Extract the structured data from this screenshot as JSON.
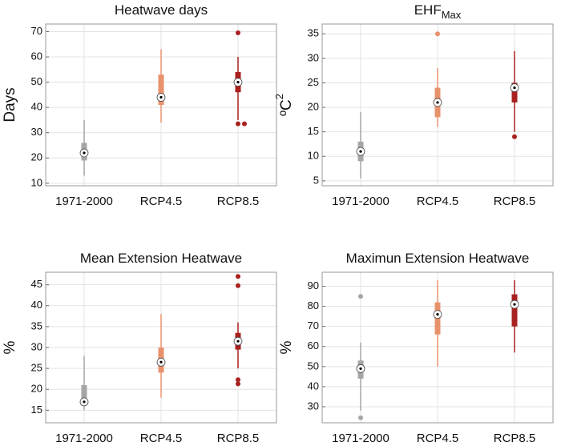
{
  "chart_data": [
    {
      "type": "box",
      "title": "Heatwave days",
      "ylabel": "Days",
      "categories": [
        "1971-2000",
        "RCP4.5",
        "RCP8.5"
      ],
      "colors": [
        "#a6a6a6",
        "#e8926c",
        "#a8201f"
      ],
      "boxes": [
        {
          "whisker_low": 13,
          "q1": 19,
          "median": 22,
          "q3": 26,
          "whisker_high": 35,
          "outliers": []
        },
        {
          "whisker_low": 34,
          "q1": 41,
          "median": 44,
          "q3": 53,
          "whisker_high": 63,
          "outliers": []
        },
        {
          "whisker_low": 35,
          "q1": 46,
          "median": 50,
          "q3": 54,
          "whisker_high": 60,
          "outliers": [
            33.5,
            33.5,
            69.5
          ]
        }
      ],
      "ylim": [
        9,
        73
      ],
      "yticks": [
        10,
        20,
        30,
        40,
        50,
        60,
        70
      ],
      "grid": true
    },
    {
      "type": "box",
      "title": "EHF",
      "title_subscript": "Max",
      "ylabel": "ºC",
      "ylabel_superscript": "2",
      "categories": [
        "1971-2000",
        "RCP4.5",
        "RCP8.5"
      ],
      "colors": [
        "#a6a6a6",
        "#e8926c",
        "#a8201f"
      ],
      "boxes": [
        {
          "whisker_low": 5.5,
          "q1": 9,
          "median": 11,
          "q3": 13,
          "whisker_high": 19,
          "outliers": []
        },
        {
          "whisker_low": 16,
          "q1": 18,
          "median": 21,
          "q3": 24,
          "whisker_high": 28,
          "outliers": [
            35
          ]
        },
        {
          "whisker_low": 15,
          "q1": 21,
          "median": 24,
          "q3": 25,
          "whisker_high": 31.5,
          "outliers": [
            14
          ]
        }
      ],
      "ylim": [
        4,
        37
      ],
      "yticks": [
        5,
        10,
        15,
        20,
        25,
        30,
        35
      ],
      "grid": true
    },
    {
      "type": "box",
      "title": "Mean Extension Heatwave",
      "ylabel": "%",
      "categories": [
        "1971-2000",
        "RCP4.5",
        "RCP8.5"
      ],
      "colors": [
        "#a6a6a6",
        "#e8926c",
        "#a8201f"
      ],
      "boxes": [
        {
          "whisker_low": 15,
          "q1": 17,
          "median": 17,
          "q3": 21,
          "whisker_high": 28,
          "outliers": []
        },
        {
          "whisker_low": 18,
          "q1": 24,
          "median": 26.5,
          "q3": 30,
          "whisker_high": 38,
          "outliers": []
        },
        {
          "whisker_low": 25,
          "q1": 29.5,
          "median": 31.5,
          "q3": 33.5,
          "whisker_high": 36,
          "outliers": [
            44.8,
            47,
            22.3,
            21.3
          ]
        }
      ],
      "ylim": [
        12,
        48
      ],
      "yticks": [
        15,
        20,
        25,
        30,
        35,
        40,
        45
      ],
      "grid": true
    },
    {
      "type": "box",
      "title": "Maximun Extension Heatwave",
      "ylabel": "%",
      "categories": [
        "1971-2000",
        "RCP4.5",
        "RCP8.5"
      ],
      "colors": [
        "#a6a6a6",
        "#e8926c",
        "#a8201f"
      ],
      "boxes": [
        {
          "whisker_low": 28,
          "q1": 44,
          "median": 49,
          "q3": 53,
          "whisker_high": 62,
          "outliers": [
            85,
            24.5
          ]
        },
        {
          "whisker_low": 50,
          "q1": 66,
          "median": 76,
          "q3": 82,
          "whisker_high": 93,
          "outliers": []
        },
        {
          "whisker_low": 57,
          "q1": 70,
          "median": 81,
          "q3": 86,
          "whisker_high": 93,
          "outliers": []
        }
      ],
      "ylim": [
        22,
        97
      ],
      "yticks": [
        30,
        40,
        50,
        60,
        70,
        80,
        90
      ],
      "grid": true
    }
  ]
}
